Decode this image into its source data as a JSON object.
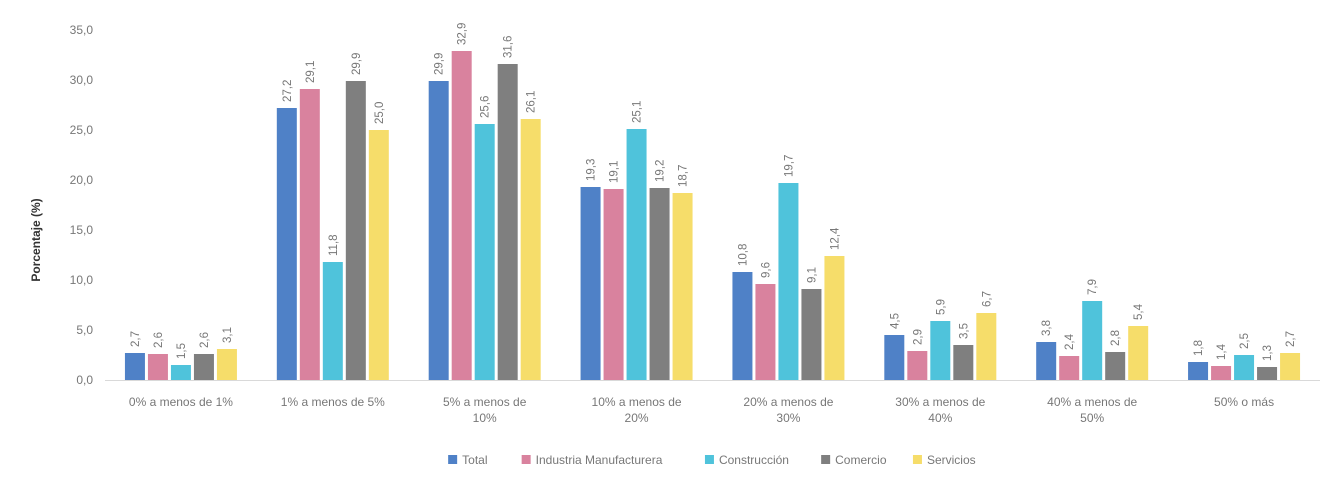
{
  "chart_data": {
    "type": "bar",
    "ylabel": "Porcentaje (%)",
    "xlabel": "",
    "ylim": [
      0,
      35
    ],
    "y_ticks": [
      "0,0",
      "5,0",
      "10,0",
      "15,0",
      "20,0",
      "25,0",
      "30,0",
      "35,0"
    ],
    "grid": false,
    "legend_position": "bottom",
    "categories": [
      [
        "0% a menos de 1%"
      ],
      [
        "1% a menos de 5%"
      ],
      [
        "5% a menos de",
        "10%"
      ],
      [
        "10% a menos de",
        "20%"
      ],
      [
        "20% a menos de",
        "30%"
      ],
      [
        "30% a menos de",
        "40%"
      ],
      [
        "40% a menos de",
        "50%"
      ],
      [
        "50% o más"
      ]
    ],
    "series": [
      {
        "name": "Total",
        "color": "#4f81c7",
        "values": [
          2.7,
          27.2,
          29.9,
          19.3,
          10.8,
          4.5,
          3.8,
          1.8
        ],
        "labels": [
          "2,7",
          "27,2",
          "29,9",
          "19,3",
          "10,8",
          "4,5",
          "3,8",
          "1,8"
        ]
      },
      {
        "name": "Industria Manufacturera",
        "color": "#d9829e",
        "values": [
          2.6,
          29.1,
          32.9,
          19.1,
          9.6,
          2.9,
          2.4,
          1.4
        ],
        "labels": [
          "2,6",
          "29,1",
          "32,9",
          "19,1",
          "9,6",
          "2,9",
          "2,4",
          "1,4"
        ]
      },
      {
        "name": "Construcción",
        "color": "#4fc3db",
        "values": [
          1.5,
          11.8,
          25.6,
          25.1,
          19.7,
          5.9,
          7.9,
          2.5
        ],
        "labels": [
          "1,5",
          "11,8",
          "25,6",
          "25,1",
          "19,7",
          "5,9",
          "7,9",
          "2,5"
        ]
      },
      {
        "name": "Comercio",
        "color": "#7f7f7f",
        "values": [
          2.6,
          29.9,
          31.6,
          19.2,
          9.1,
          3.5,
          2.8,
          1.3
        ],
        "labels": [
          "2,6",
          "29,9",
          "31,6",
          "19,2",
          "9,1",
          "3,5",
          "2,8",
          "1,3"
        ]
      },
      {
        "name": "Servicios",
        "color": "#f6dd6a",
        "values": [
          3.1,
          25.0,
          26.1,
          18.7,
          12.4,
          6.7,
          5.4,
          2.7
        ],
        "labels": [
          "3,1",
          "25,0",
          "26,1",
          "18,7",
          "12,4",
          "6,7",
          "5,4",
          "2,7"
        ]
      }
    ]
  }
}
